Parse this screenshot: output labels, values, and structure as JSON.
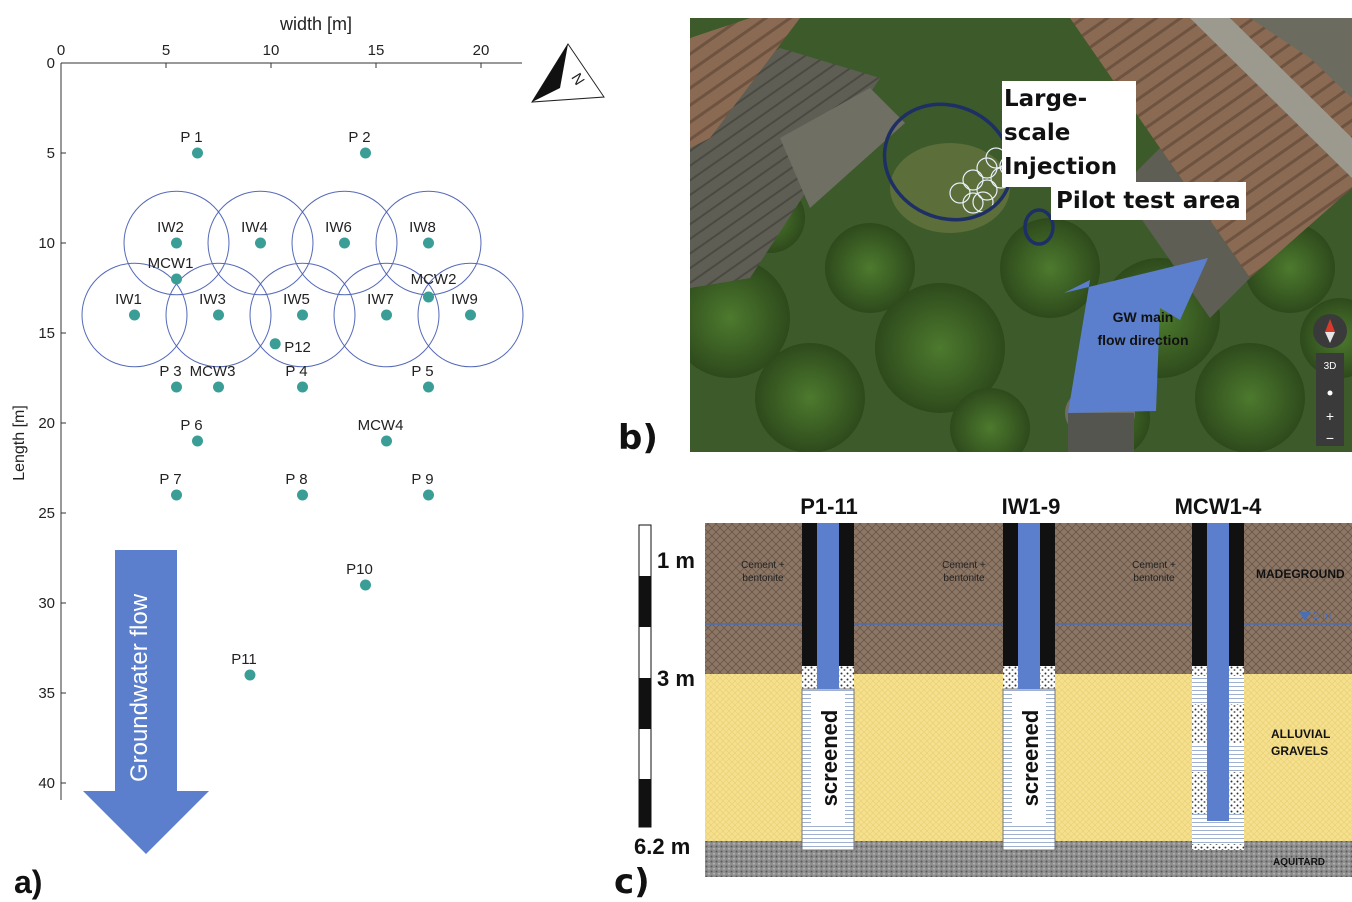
{
  "panel_a": {
    "label": "a)",
    "x_axis_title": "width [m]",
    "y_axis_title": "Length [m]",
    "x_ticks": [
      0,
      5,
      10,
      15,
      20
    ],
    "y_ticks": [
      0,
      5,
      10,
      15,
      20,
      25,
      30,
      35,
      40
    ],
    "xlim": [
      0,
      22
    ],
    "ylim": [
      0,
      42
    ],
    "north_label": "N",
    "flow_arrow_label": "Groundwater flow",
    "influence_radius": 2.5,
    "wells": [
      {
        "label": "P 1",
        "x": 6.5,
        "y": 5
      },
      {
        "label": "P 2",
        "x": 14.5,
        "y": 5
      },
      {
        "label": "IW2",
        "x": 5.5,
        "y": 10
      },
      {
        "label": "IW4",
        "x": 9.5,
        "y": 10
      },
      {
        "label": "IW6",
        "x": 13.5,
        "y": 10
      },
      {
        "label": "IW8",
        "x": 17.5,
        "y": 10
      },
      {
        "label": "MCW1",
        "x": 5.5,
        "y": 12
      },
      {
        "label": "MCW2",
        "x": 17.5,
        "y": 13
      },
      {
        "label": "IW1",
        "x": 3.5,
        "y": 14
      },
      {
        "label": "IW3",
        "x": 7.5,
        "y": 14
      },
      {
        "label": "IW5",
        "x": 11.5,
        "y": 14
      },
      {
        "label": "IW7",
        "x": 15.5,
        "y": 14
      },
      {
        "label": "IW9",
        "x": 19.5,
        "y": 14
      },
      {
        "label": "P12",
        "x": 10.2,
        "y": 15.6
      },
      {
        "label": "P 3",
        "x": 5.5,
        "y": 18
      },
      {
        "label": "MCW3",
        "x": 7.5,
        "y": 18
      },
      {
        "label": "P 4",
        "x": 11.5,
        "y": 18
      },
      {
        "label": "P 5",
        "x": 17.5,
        "y": 18
      },
      {
        "label": "P 6",
        "x": 6.5,
        "y": 21
      },
      {
        "label": "MCW4",
        "x": 15.5,
        "y": 21
      },
      {
        "label": "P 7",
        "x": 5.5,
        "y": 24
      },
      {
        "label": "P 8",
        "x": 11.5,
        "y": 24
      },
      {
        "label": "P 9",
        "x": 17.5,
        "y": 24
      },
      {
        "label": "P10",
        "x": 14.5,
        "y": 29
      },
      {
        "label": "P11",
        "x": 9,
        "y": 34
      }
    ],
    "injection_circles": [
      "IW1",
      "IW2",
      "IW3",
      "IW4",
      "IW5",
      "IW6",
      "IW7",
      "IW8",
      "IW9"
    ]
  },
  "panel_b": {
    "label": "b)",
    "callout_large_scale_line1": "Large-scale",
    "callout_large_scale_line2": "Injection",
    "callout_pilot": "Pilot test area",
    "arrow_text_line1": "GW main",
    "arrow_text_line2": "flow direction",
    "map_controls": [
      "3D",
      "+",
      "−"
    ]
  },
  "panel_c": {
    "label": "c)",
    "wells": [
      "P1-11",
      "IW1-9",
      "MCW1-4"
    ],
    "scale_labels": [
      "1 m",
      "3 m",
      "6.2 m"
    ],
    "fill_label_line1": "Cement +",
    "fill_label_line2": "bentonite",
    "screen_label": "screened",
    "water_level": "2 m",
    "layers": [
      "MADEGROUND",
      "ALLUVIAL",
      "GRAVELS",
      "AQUITARD"
    ]
  },
  "colors": {
    "marker": "#3a9e97",
    "circle": "#5569b8",
    "arrow": "#5b7fcc",
    "made_ground": "#8c7766",
    "gravel": "#f5e08e",
    "aquitard": "#8e8e8e",
    "casing": "#111111"
  }
}
